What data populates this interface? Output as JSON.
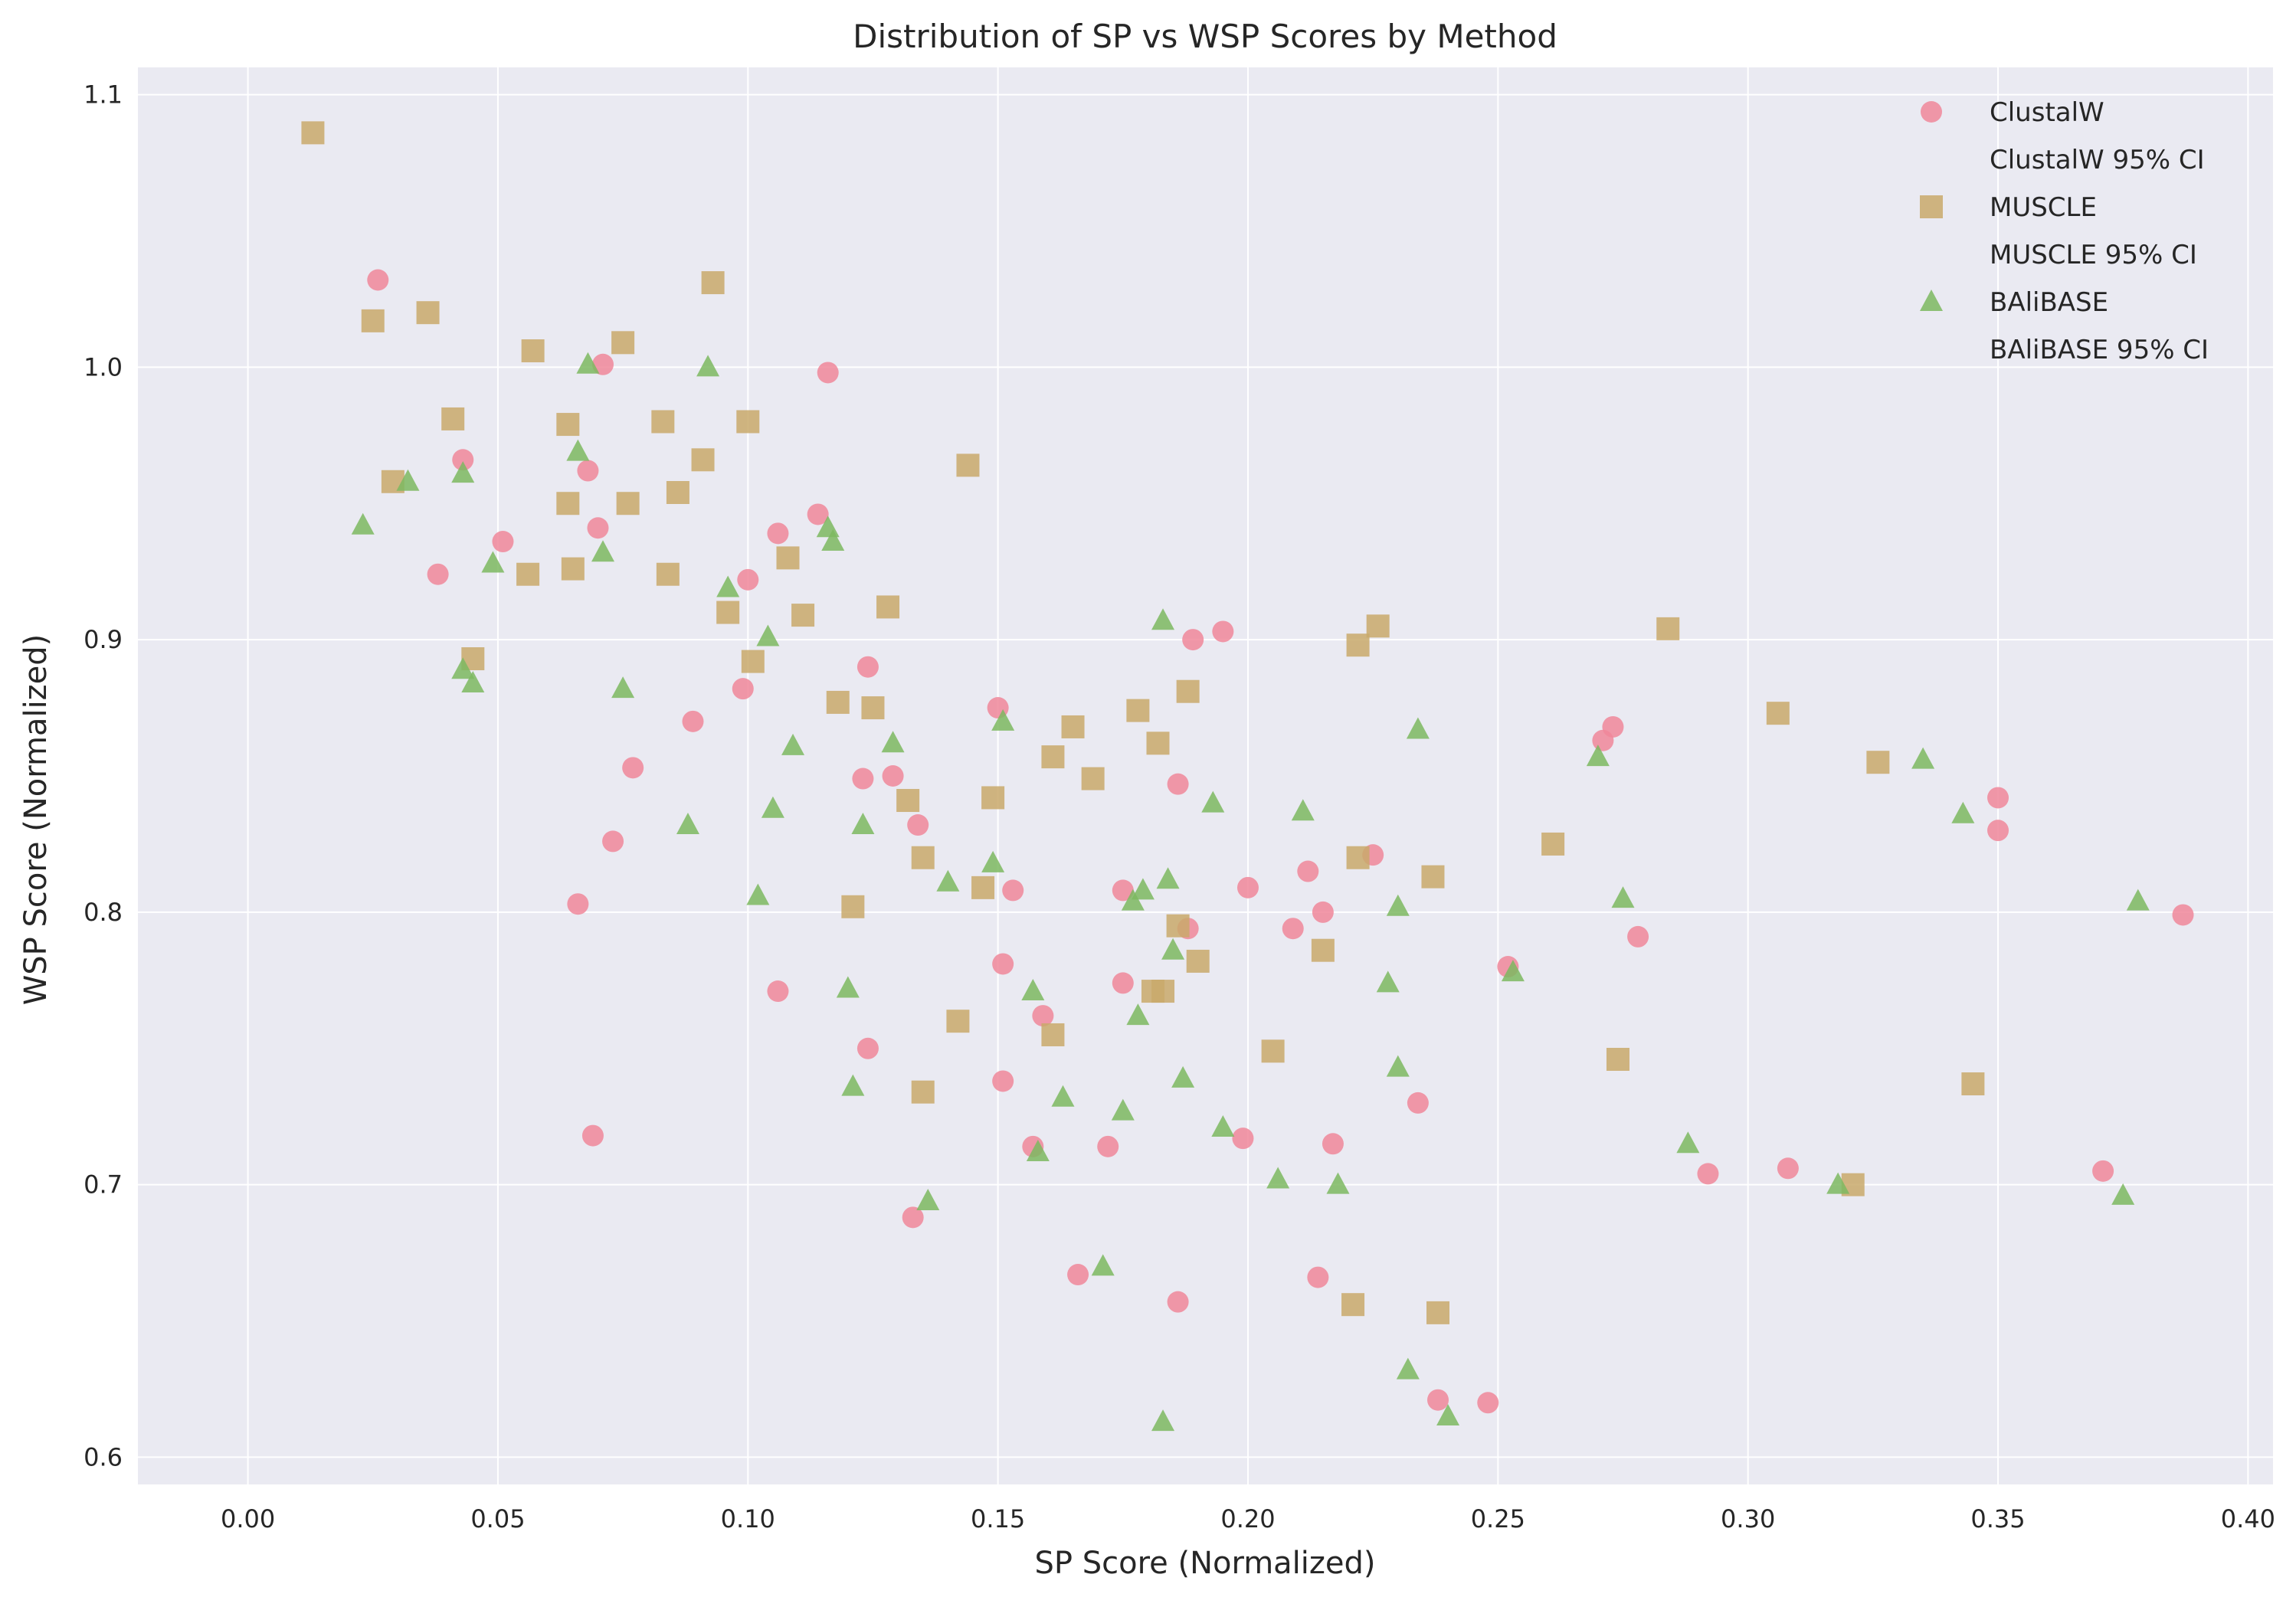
{
  "chart_data": {
    "type": "scatter",
    "title": "Distribution of SP vs WSP Scores by Method",
    "xlabel": "SP Score (Normalized)",
    "ylabel": "WSP Score (Normalized)",
    "xlim": [
      -0.022,
      0.405
    ],
    "ylim": [
      0.59,
      1.11
    ],
    "xticks": [
      "0.00",
      "0.05",
      "0.10",
      "0.15",
      "0.20",
      "0.25",
      "0.30",
      "0.35",
      "0.40"
    ],
    "yticks": [
      "0.6",
      "0.7",
      "0.8",
      "0.9",
      "1.0",
      "1.1"
    ],
    "grid": true,
    "legend_position": "top-right",
    "legend": [
      "ClustalW",
      "ClustalW 95% CI",
      "MUSCLE",
      "MUSCLE 95% CI",
      "BAliBASE",
      "BAliBASE 95% CI"
    ],
    "series": [
      {
        "name": "ClustalW",
        "marker": "circle",
        "color": "#f0879a",
        "points": [
          [
            0.026,
            1.032
          ],
          [
            0.043,
            0.966
          ],
          [
            0.038,
            0.924
          ],
          [
            0.051,
            0.936
          ],
          [
            0.068,
            0.962
          ],
          [
            0.07,
            0.941
          ],
          [
            0.071,
            1.001
          ],
          [
            0.066,
            0.803
          ],
          [
            0.069,
            0.718
          ],
          [
            0.073,
            0.826
          ],
          [
            0.077,
            0.853
          ],
          [
            0.089,
            0.87
          ],
          [
            0.099,
            0.882
          ],
          [
            0.1,
            0.922
          ],
          [
            0.106,
            0.939
          ],
          [
            0.106,
            0.771
          ],
          [
            0.114,
            0.946
          ],
          [
            0.116,
            0.998
          ],
          [
            0.123,
            0.849
          ],
          [
            0.124,
            0.89
          ],
          [
            0.124,
            0.75
          ],
          [
            0.129,
            0.85
          ],
          [
            0.134,
            0.832
          ],
          [
            0.133,
            0.688
          ],
          [
            0.15,
            0.875
          ],
          [
            0.151,
            0.781
          ],
          [
            0.151,
            0.738
          ],
          [
            0.153,
            0.808
          ],
          [
            0.157,
            0.714
          ],
          [
            0.159,
            0.762
          ],
          [
            0.166,
            0.667
          ],
          [
            0.172,
            0.714
          ],
          [
            0.175,
            0.808
          ],
          [
            0.175,
            0.774
          ],
          [
            0.186,
            0.847
          ],
          [
            0.186,
            0.657
          ],
          [
            0.188,
            0.794
          ],
          [
            0.189,
            0.9
          ],
          [
            0.195,
            0.903
          ],
          [
            0.199,
            0.717
          ],
          [
            0.2,
            0.809
          ],
          [
            0.209,
            0.794
          ],
          [
            0.212,
            0.815
          ],
          [
            0.214,
            0.666
          ],
          [
            0.215,
            0.8
          ],
          [
            0.217,
            0.715
          ],
          [
            0.225,
            0.821
          ],
          [
            0.234,
            0.73
          ],
          [
            0.238,
            0.621
          ],
          [
            0.248,
            0.62
          ],
          [
            0.252,
            0.78
          ],
          [
            0.271,
            0.863
          ],
          [
            0.273,
            0.868
          ],
          [
            0.278,
            0.791
          ],
          [
            0.292,
            0.704
          ],
          [
            0.308,
            0.706
          ],
          [
            0.35,
            0.842
          ],
          [
            0.35,
            0.83
          ],
          [
            0.371,
            0.705
          ],
          [
            0.387,
            0.799
          ]
        ]
      },
      {
        "name": "MUSCLE",
        "marker": "square",
        "color": "#c9a96b",
        "points": [
          [
            0.013,
            1.086
          ],
          [
            0.025,
            1.017
          ],
          [
            0.036,
            1.02
          ],
          [
            0.029,
            0.958
          ],
          [
            0.041,
            0.981
          ],
          [
            0.045,
            0.893
          ],
          [
            0.056,
            0.924
          ],
          [
            0.057,
            1.006
          ],
          [
            0.064,
            0.979
          ],
          [
            0.064,
            0.95
          ],
          [
            0.065,
            0.926
          ],
          [
            0.075,
            1.009
          ],
          [
            0.076,
            0.95
          ],
          [
            0.083,
            0.98
          ],
          [
            0.084,
            0.924
          ],
          [
            0.086,
            0.954
          ],
          [
            0.091,
            0.966
          ],
          [
            0.093,
            1.031
          ],
          [
            0.096,
            0.91
          ],
          [
            0.1,
            0.98
          ],
          [
            0.101,
            0.892
          ],
          [
            0.108,
            0.93
          ],
          [
            0.111,
            0.909
          ],
          [
            0.118,
            0.877
          ],
          [
            0.121,
            0.802
          ],
          [
            0.125,
            0.875
          ],
          [
            0.128,
            0.912
          ],
          [
            0.132,
            0.841
          ],
          [
            0.135,
            0.82
          ],
          [
            0.135,
            0.734
          ],
          [
            0.142,
            0.76
          ],
          [
            0.144,
            0.964
          ],
          [
            0.147,
            0.809
          ],
          [
            0.149,
            0.842
          ],
          [
            0.161,
            0.857
          ],
          [
            0.161,
            0.755
          ],
          [
            0.165,
            0.868
          ],
          [
            0.169,
            0.849
          ],
          [
            0.178,
            0.874
          ],
          [
            0.181,
            0.771
          ],
          [
            0.182,
            0.862
          ],
          [
            0.183,
            0.771
          ],
          [
            0.186,
            0.795
          ],
          [
            0.188,
            0.881
          ],
          [
            0.19,
            0.782
          ],
          [
            0.205,
            0.749
          ],
          [
            0.215,
            0.786
          ],
          [
            0.221,
            0.656
          ],
          [
            0.222,
            0.82
          ],
          [
            0.222,
            0.898
          ],
          [
            0.226,
            0.905
          ],
          [
            0.237,
            0.813
          ],
          [
            0.238,
            0.653
          ],
          [
            0.261,
            0.825
          ],
          [
            0.274,
            0.746
          ],
          [
            0.284,
            0.904
          ],
          [
            0.306,
            0.873
          ],
          [
            0.321,
            0.7
          ],
          [
            0.326,
            0.855
          ],
          [
            0.345,
            0.737
          ]
        ]
      },
      {
        "name": "BAliBASE",
        "marker": "triangle",
        "color": "#7cb960",
        "points": [
          [
            0.023,
            0.942
          ],
          [
            0.032,
            0.958
          ],
          [
            0.043,
            0.961
          ],
          [
            0.043,
            0.889
          ],
          [
            0.045,
            0.884
          ],
          [
            0.049,
            0.928
          ],
          [
            0.066,
            0.969
          ],
          [
            0.068,
            1.001
          ],
          [
            0.071,
            0.932
          ],
          [
            0.075,
            0.882
          ],
          [
            0.088,
            0.832
          ],
          [
            0.092,
            1.0
          ],
          [
            0.096,
            0.919
          ],
          [
            0.102,
            0.806
          ],
          [
            0.104,
            0.901
          ],
          [
            0.105,
            0.838
          ],
          [
            0.109,
            0.861
          ],
          [
            0.116,
            0.941
          ],
          [
            0.117,
            0.936
          ],
          [
            0.12,
            0.772
          ],
          [
            0.121,
            0.736
          ],
          [
            0.123,
            0.832
          ],
          [
            0.129,
            0.862
          ],
          [
            0.136,
            0.694
          ],
          [
            0.14,
            0.811
          ],
          [
            0.149,
            0.818
          ],
          [
            0.151,
            0.87
          ],
          [
            0.157,
            0.771
          ],
          [
            0.158,
            0.712
          ],
          [
            0.163,
            0.732
          ],
          [
            0.171,
            0.67
          ],
          [
            0.175,
            0.727
          ],
          [
            0.177,
            0.804
          ],
          [
            0.178,
            0.762
          ],
          [
            0.179,
            0.808
          ],
          [
            0.183,
            0.907
          ],
          [
            0.183,
            0.613
          ],
          [
            0.184,
            0.812
          ],
          [
            0.185,
            0.786
          ],
          [
            0.187,
            0.739
          ],
          [
            0.193,
            0.84
          ],
          [
            0.195,
            0.721
          ],
          [
            0.206,
            0.702
          ],
          [
            0.211,
            0.837
          ],
          [
            0.218,
            0.7
          ],
          [
            0.228,
            0.774
          ],
          [
            0.23,
            0.802
          ],
          [
            0.23,
            0.743
          ],
          [
            0.232,
            0.632
          ],
          [
            0.234,
            0.867
          ],
          [
            0.24,
            0.615
          ],
          [
            0.253,
            0.778
          ],
          [
            0.27,
            0.857
          ],
          [
            0.275,
            0.805
          ],
          [
            0.288,
            0.715
          ],
          [
            0.318,
            0.7
          ],
          [
            0.335,
            0.856
          ],
          [
            0.343,
            0.836
          ],
          [
            0.375,
            0.696
          ],
          [
            0.378,
            0.804
          ]
        ]
      }
    ]
  }
}
